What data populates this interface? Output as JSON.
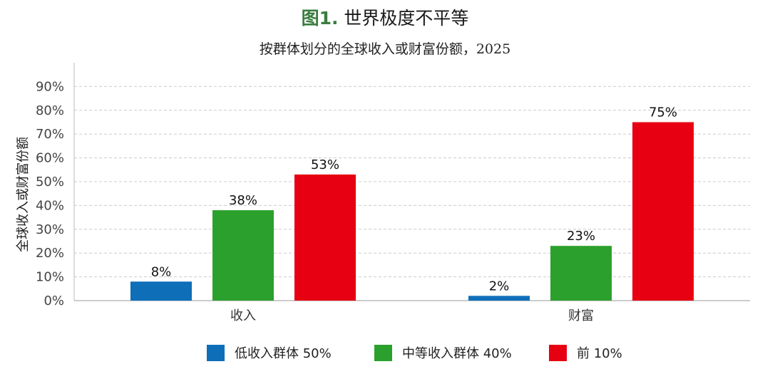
{
  "title_prefix": "图1.",
  "title_main": "世界极度不平等",
  "subtitle": "按群体划分的全球收入或财富份额，2025",
  "chart_data": {
    "type": "bar",
    "categories": [
      "收入",
      "财富"
    ],
    "series": [
      {
        "name": "低收入群体 50%",
        "values": [
          8,
          2
        ],
        "labels": [
          "8%",
          "2%"
        ],
        "color": "#0e6eb8"
      },
      {
        "name": "中等收入群体 40%",
        "values": [
          38,
          23
        ],
        "labels": [
          "38%",
          "23%"
        ],
        "color": "#2ca02c"
      },
      {
        "name": "前 10%",
        "values": [
          53,
          75
        ],
        "labels": [
          "53%",
          "75%"
        ],
        "color": "#e60012"
      }
    ],
    "ylabel": "全球收入或财富份额",
    "yticks": [
      "0%",
      "10%",
      "20%",
      "30%",
      "40%",
      "50%",
      "60%",
      "70%",
      "80%",
      "90%"
    ],
    "ylim": [
      0,
      90
    ],
    "grid": true,
    "legend_position": "bottom"
  }
}
